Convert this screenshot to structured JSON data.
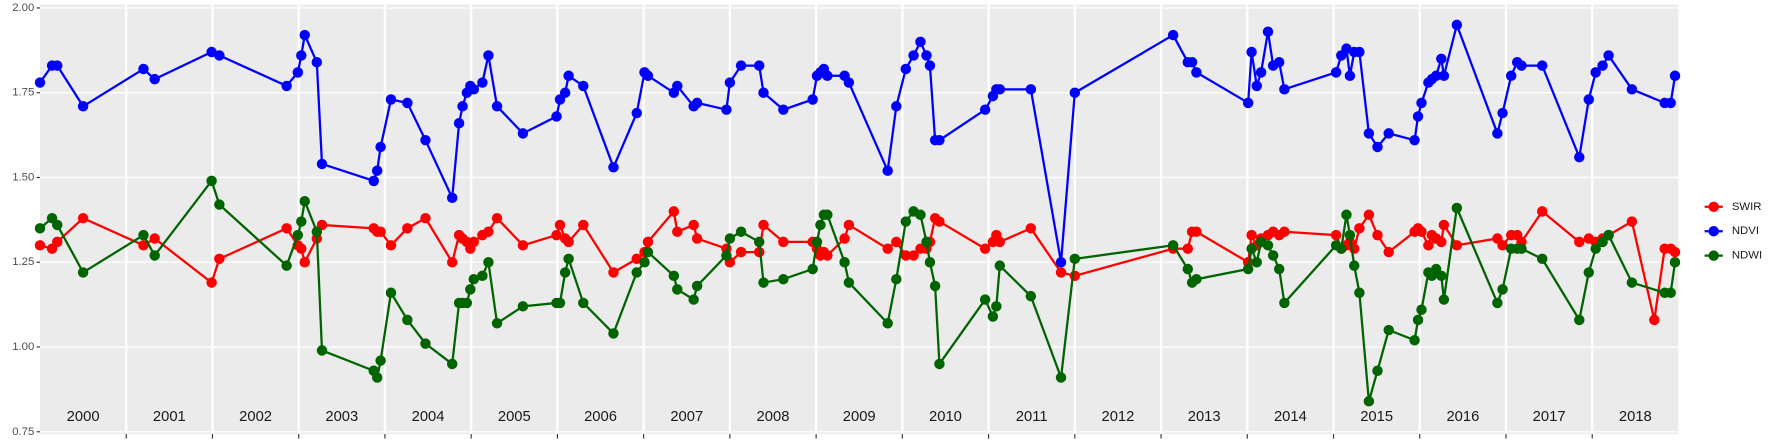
{
  "chart_data": {
    "type": "line",
    "xlim": [
      2000,
      2019
    ],
    "ylim": [
      0.75,
      2.0
    ],
    "yticks": [
      {
        "value": 0.75,
        "label": "0.75"
      },
      {
        "value": 1.0,
        "label": "1.00"
      },
      {
        "value": 1.25,
        "label": "1.25"
      },
      {
        "value": 1.5,
        "label": "1.50"
      },
      {
        "value": 1.75,
        "label": "1.75"
      },
      {
        "value": 2.0,
        "label": "2.00"
      }
    ],
    "xgrid": [
      2001,
      2002,
      2003,
      2004,
      2005,
      2006,
      2007,
      2008,
      2009,
      2010,
      2011,
      2012,
      2013,
      2014,
      2015,
      2016,
      2017,
      2018
    ],
    "year_labels": [
      {
        "value": 2000.5,
        "label": "2000"
      },
      {
        "value": 2001.5,
        "label": "2001"
      },
      {
        "value": 2002.5,
        "label": "2002"
      },
      {
        "value": 2003.5,
        "label": "2003"
      },
      {
        "value": 2004.5,
        "label": "2004"
      },
      {
        "value": 2005.5,
        "label": "2005"
      },
      {
        "value": 2006.5,
        "label": "2006"
      },
      {
        "value": 2007.5,
        "label": "2007"
      },
      {
        "value": 2008.5,
        "label": "2008"
      },
      {
        "value": 2009.5,
        "label": "2009"
      },
      {
        "value": 2010.5,
        "label": "2010"
      },
      {
        "value": 2011.5,
        "label": "2011"
      },
      {
        "value": 2012.5,
        "label": "2012"
      },
      {
        "value": 2013.5,
        "label": "2013"
      },
      {
        "value": 2014.5,
        "label": "2014"
      },
      {
        "value": 2015.5,
        "label": "2015"
      },
      {
        "value": 2016.5,
        "label": "2016"
      },
      {
        "value": 2017.5,
        "label": "2017"
      },
      {
        "value": 2018.5,
        "label": "2018"
      }
    ],
    "grid": true,
    "legend": "right",
    "series": [
      {
        "name": "SWIR",
        "color": "#ff0000",
        "x": [
          2000,
          2000.14,
          2000.2,
          2000.5,
          2001.2,
          2001.33,
          2001.99,
          2002.08,
          2002.86,
          2002.99,
          2003.03,
          2003.07,
          2003.21,
          2003.27,
          2003.87,
          2003.91,
          2003.95,
          2004.07,
          2004.26,
          2004.47,
          2004.78,
          2004.86,
          2004.9,
          2004.95,
          2004.99,
          2005.03,
          2005.13,
          2005.2,
          2005.3,
          2005.6,
          2005.99,
          2006.03,
          2006.09,
          2006.13,
          2006.3,
          2006.65,
          2006.92,
          2007.01,
          2007.05,
          2007.35,
          2007.39,
          2007.58,
          2007.62,
          2007.96,
          2008,
          2008.13,
          2008.34,
          2008.39,
          2008.62,
          2008.96,
          2009.01,
          2009.05,
          2009.09,
          2009.13,
          2009.33,
          2009.38,
          2009.83,
          2009.93,
          2010.04,
          2010.13,
          2010.21,
          2010.28,
          2010.32,
          2010.38,
          2010.43,
          2010.96,
          2011.05,
          2011.09,
          2011.13,
          2011.49,
          2011.84,
          2012,
          2013.14,
          2013.31,
          2013.36,
          2013.41,
          2014.01,
          2014.05,
          2014.11,
          2014.16,
          2014.24,
          2014.3,
          2014.37,
          2014.43,
          2015.03,
          2015.09,
          2015.15,
          2015.19,
          2015.24,
          2015.3,
          2015.41,
          2015.51,
          2015.64,
          2015.94,
          2015.98,
          2016.02,
          2016.1,
          2016.14,
          2016.19,
          2016.25,
          2016.28,
          2016.43,
          2016.9,
          2016.96,
          2017.06,
          2017.13,
          2017.18,
          2017.42,
          2017.85,
          2017.96,
          2018.04,
          2018.12,
          2018.19,
          2018.46,
          2018.72,
          2018.84,
          2018.91,
          2018.96
        ],
        "values": [
          1.3,
          1.29,
          1.31,
          1.38,
          1.3,
          1.32,
          1.19,
          1.26,
          1.35,
          1.3,
          1.29,
          1.25,
          1.32,
          1.36,
          1.35,
          1.34,
          1.34,
          1.3,
          1.35,
          1.38,
          1.25,
          1.33,
          1.32,
          1.31,
          1.29,
          1.31,
          1.33,
          1.34,
          1.38,
          1.3,
          1.33,
          1.36,
          1.32,
          1.31,
          1.36,
          1.22,
          1.26,
          1.28,
          1.31,
          1.4,
          1.34,
          1.36,
          1.32,
          1.29,
          1.25,
          1.28,
          1.28,
          1.36,
          1.31,
          1.31,
          1.29,
          1.27,
          1.28,
          1.27,
          1.32,
          1.36,
          1.29,
          1.31,
          1.27,
          1.27,
          1.29,
          1.29,
          1.31,
          1.38,
          1.37,
          1.29,
          1.31,
          1.33,
          1.31,
          1.35,
          1.22,
          1.21,
          1.29,
          1.29,
          1.34,
          1.34,
          1.25,
          1.33,
          1.3,
          1.32,
          1.33,
          1.34,
          1.33,
          1.34,
          1.33,
          1.29,
          1.3,
          1.31,
          1.29,
          1.35,
          1.39,
          1.33,
          1.28,
          1.34,
          1.35,
          1.34,
          1.3,
          1.33,
          1.32,
          1.31,
          1.36,
          1.3,
          1.32,
          1.3,
          1.33,
          1.33,
          1.31,
          1.4,
          1.31,
          1.32,
          1.31,
          1.32,
          1.33,
          1.37,
          1.08,
          1.29,
          1.29,
          1.28
        ]
      },
      {
        "name": "NDVI",
        "color": "#0000ff",
        "x": [
          2000,
          2000.14,
          2000.2,
          2000.5,
          2001.2,
          2001.33,
          2001.99,
          2002.08,
          2002.86,
          2002.99,
          2003.03,
          2003.07,
          2003.21,
          2003.27,
          2003.87,
          2003.91,
          2003.95,
          2004.07,
          2004.26,
          2004.47,
          2004.78,
          2004.86,
          2004.9,
          2004.95,
          2004.99,
          2005.03,
          2005.13,
          2005.2,
          2005.3,
          2005.6,
          2005.99,
          2006.03,
          2006.09,
          2006.13,
          2006.3,
          2006.65,
          2006.92,
          2007.01,
          2007.05,
          2007.35,
          2007.39,
          2007.58,
          2007.62,
          2007.96,
          2008,
          2008.13,
          2008.34,
          2008.39,
          2008.62,
          2008.96,
          2009.01,
          2009.05,
          2009.09,
          2009.13,
          2009.33,
          2009.38,
          2009.83,
          2009.93,
          2010.04,
          2010.13,
          2010.21,
          2010.28,
          2010.32,
          2010.38,
          2010.43,
          2010.96,
          2011.05,
          2011.09,
          2011.13,
          2011.49,
          2011.84,
          2012,
          2013.14,
          2013.31,
          2013.36,
          2013.41,
          2014.01,
          2014.05,
          2014.11,
          2014.16,
          2014.24,
          2014.3,
          2014.37,
          2014.43,
          2015.03,
          2015.09,
          2015.15,
          2015.19,
          2015.24,
          2015.3,
          2015.41,
          2015.51,
          2015.64,
          2015.94,
          2015.98,
          2016.02,
          2016.1,
          2016.14,
          2016.19,
          2016.25,
          2016.28,
          2016.43,
          2016.9,
          2016.96,
          2017.06,
          2017.13,
          2017.18,
          2017.42,
          2017.85,
          2017.96,
          2018.04,
          2018.12,
          2018.19,
          2018.46,
          2018.84,
          2018.91,
          2018.96
        ],
        "values": [
          1.78,
          1.83,
          1.83,
          1.71,
          1.82,
          1.79,
          1.87,
          1.86,
          1.77,
          1.81,
          1.86,
          1.92,
          1.84,
          1.54,
          1.49,
          1.52,
          1.59,
          1.73,
          1.72,
          1.61,
          1.44,
          1.66,
          1.71,
          1.75,
          1.77,
          1.76,
          1.78,
          1.86,
          1.71,
          1.63,
          1.68,
          1.73,
          1.75,
          1.8,
          1.77,
          1.53,
          1.69,
          1.81,
          1.8,
          1.75,
          1.77,
          1.71,
          1.72,
          1.7,
          1.78,
          1.83,
          1.83,
          1.75,
          1.7,
          1.73,
          1.8,
          1.81,
          1.82,
          1.8,
          1.8,
          1.78,
          1.52,
          1.71,
          1.82,
          1.86,
          1.9,
          1.86,
          1.83,
          1.61,
          1.61,
          1.7,
          1.74,
          1.76,
          1.76,
          1.76,
          1.25,
          1.75,
          1.92,
          1.84,
          1.84,
          1.81,
          1.72,
          1.87,
          1.77,
          1.81,
          1.93,
          1.83,
          1.84,
          1.76,
          1.81,
          1.86,
          1.88,
          1.8,
          1.87,
          1.87,
          1.63,
          1.59,
          1.63,
          1.61,
          1.68,
          1.72,
          1.78,
          1.79,
          1.8,
          1.85,
          1.8,
          1.95,
          1.63,
          1.69,
          1.8,
          1.84,
          1.83,
          1.83,
          1.56,
          1.73,
          1.81,
          1.83,
          1.86,
          1.76,
          1.72,
          1.72,
          1.8
        ]
      },
      {
        "name": "NDWI",
        "color": "#006400",
        "x": [
          2000,
          2000.14,
          2000.2,
          2000.5,
          2001.2,
          2001.33,
          2001.99,
          2002.08,
          2002.86,
          2002.99,
          2003.03,
          2003.07,
          2003.21,
          2003.27,
          2003.87,
          2003.91,
          2003.95,
          2004.07,
          2004.26,
          2004.47,
          2004.78,
          2004.86,
          2004.9,
          2004.95,
          2004.99,
          2005.03,
          2005.13,
          2005.2,
          2005.3,
          2005.6,
          2005.99,
          2006.03,
          2006.09,
          2006.13,
          2006.3,
          2006.65,
          2006.92,
          2007.01,
          2007.05,
          2007.35,
          2007.39,
          2007.58,
          2007.62,
          2007.96,
          2008,
          2008.13,
          2008.34,
          2008.39,
          2008.62,
          2008.96,
          2009.01,
          2009.05,
          2009.09,
          2009.13,
          2009.33,
          2009.38,
          2009.83,
          2009.93,
          2010.04,
          2010.13,
          2010.21,
          2010.28,
          2010.32,
          2010.38,
          2010.43,
          2010.96,
          2011.05,
          2011.09,
          2011.13,
          2011.49,
          2011.84,
          2012,
          2013.14,
          2013.31,
          2013.36,
          2013.41,
          2014.01,
          2014.05,
          2014.11,
          2014.16,
          2014.24,
          2014.3,
          2014.37,
          2014.43,
          2015.03,
          2015.09,
          2015.15,
          2015.19,
          2015.24,
          2015.3,
          2015.41,
          2015.51,
          2015.64,
          2015.94,
          2015.98,
          2016.02,
          2016.1,
          2016.14,
          2016.19,
          2016.25,
          2016.28,
          2016.43,
          2016.9,
          2016.96,
          2017.06,
          2017.13,
          2017.18,
          2017.42,
          2017.85,
          2017.96,
          2018.04,
          2018.12,
          2018.19,
          2018.46,
          2018.84,
          2018.91,
          2018.96
        ],
        "values": [
          1.35,
          1.38,
          1.36,
          1.22,
          1.33,
          1.27,
          1.49,
          1.42,
          1.24,
          1.33,
          1.37,
          1.43,
          1.34,
          0.99,
          0.93,
          0.91,
          0.96,
          1.16,
          1.08,
          1.01,
          0.95,
          1.13,
          1.13,
          1.13,
          1.17,
          1.2,
          1.21,
          1.25,
          1.07,
          1.12,
          1.13,
          1.13,
          1.22,
          1.26,
          1.13,
          1.04,
          1.22,
          1.25,
          1.28,
          1.21,
          1.17,
          1.14,
          1.18,
          1.27,
          1.32,
          1.34,
          1.31,
          1.19,
          1.2,
          1.23,
          1.31,
          1.36,
          1.39,
          1.39,
          1.25,
          1.19,
          1.07,
          1.2,
          1.37,
          1.4,
          1.39,
          1.31,
          1.25,
          1.18,
          0.95,
          1.14,
          1.09,
          1.12,
          1.24,
          1.15,
          0.91,
          1.26,
          1.3,
          1.23,
          1.19,
          1.2,
          1.23,
          1.29,
          1.25,
          1.31,
          1.3,
          1.27,
          1.23,
          1.13,
          1.3,
          1.29,
          1.39,
          1.33,
          1.24,
          1.16,
          0.84,
          0.93,
          1.05,
          1.02,
          1.08,
          1.11,
          1.22,
          1.21,
          1.23,
          1.21,
          1.14,
          1.41,
          1.13,
          1.17,
          1.29,
          1.29,
          1.29,
          1.26,
          1.08,
          1.22,
          1.29,
          1.31,
          1.33,
          1.19,
          1.16,
          1.16,
          1.25
        ]
      }
    ]
  }
}
